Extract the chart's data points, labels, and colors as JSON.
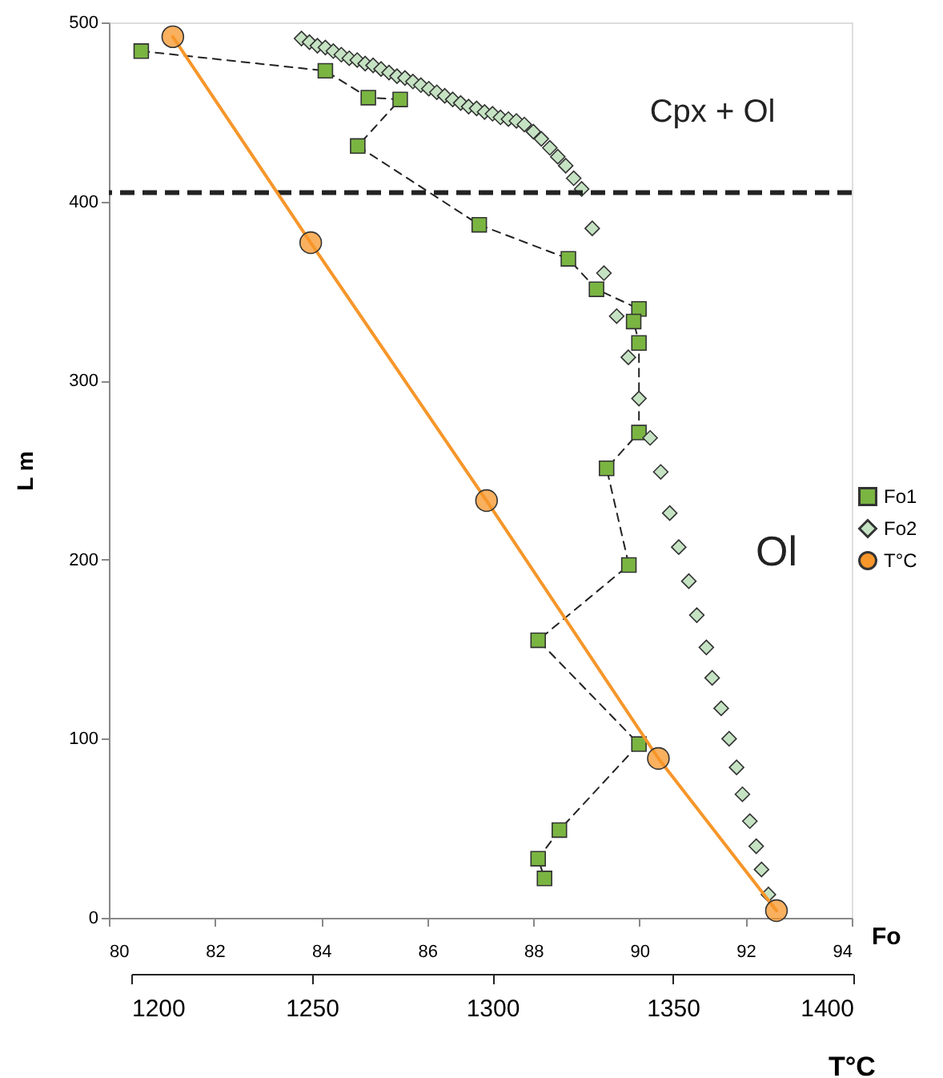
{
  "chart_data": {
    "type": "line",
    "xlabel": "Fo",
    "ylabel": "L m",
    "x2label": "T°C",
    "xlim": [
      80,
      94
    ],
    "xticks": [
      80,
      82,
      84,
      86,
      88,
      90,
      92,
      94
    ],
    "x2lim": [
      1200,
      1400
    ],
    "x2ticks": [
      1200,
      1250,
      1300,
      1350,
      1400
    ],
    "ylim": [
      0,
      500
    ],
    "yticks": [
      0,
      100,
      200,
      300,
      400,
      500
    ],
    "grid": false,
    "legend": "right",
    "ref_lines": [
      {
        "axis": "y",
        "value": 405,
        "line_style": "dashed",
        "color": "#222222"
      }
    ],
    "annotations": [
      "Cpx + Ol",
      "Ol"
    ],
    "series": [
      {
        "name": "Fo1",
        "marker": "square",
        "line_style": "dashed",
        "color": "#7ab542",
        "x": [
          80.61,
          84.08,
          84.89,
          85.49,
          84.69,
          86.98,
          88.66,
          89.19,
          89.99,
          89.89,
          89.99,
          89.99,
          89.38,
          89.8,
          88.09,
          89.99,
          88.49,
          88.09,
          88.21
        ],
        "values": [
          484,
          473,
          458,
          457,
          431,
          387,
          368,
          351,
          340,
          333,
          321,
          271,
          251,
          197,
          155,
          97,
          49,
          33,
          22
        ]
      },
      {
        "name": "Fo2",
        "type": "scatter",
        "marker": "diamond",
        "color": "#c5e3c3",
        "x": [
          83.63,
          83.78,
          83.93,
          84.08,
          84.23,
          84.38,
          84.53,
          84.68,
          84.83,
          84.98,
          85.13,
          85.28,
          85.43,
          85.58,
          85.73,
          85.88,
          86.03,
          86.18,
          86.33,
          86.48,
          86.63,
          86.78,
          86.93,
          87.08,
          87.23,
          87.38,
          87.53,
          87.68,
          87.83,
          88.0,
          88.15,
          88.31,
          88.46,
          88.61,
          88.76,
          88.91,
          89.11,
          89.33,
          89.57,
          89.79,
          89.99,
          90.2,
          90.4,
          90.57,
          90.74,
          90.93,
          91.08,
          91.26,
          91.37,
          91.54,
          91.69,
          91.83,
          91.94,
          92.08,
          92.2,
          92.3,
          92.43
        ],
        "values": [
          491,
          489,
          487,
          486,
          484,
          482,
          480,
          479,
          477,
          476,
          474,
          472,
          470,
          469,
          467,
          465,
          463,
          461,
          459,
          457,
          455,
          453,
          452,
          450,
          449,
          447,
          446,
          445,
          443,
          439,
          435,
          430,
          425,
          420,
          413,
          407,
          385,
          360,
          336,
          313,
          290,
          268,
          249,
          226,
          207,
          188,
          169,
          151,
          134,
          117,
          100,
          84,
          69,
          54,
          40,
          27,
          13
        ]
      },
      {
        "name": "T°C",
        "marker": "circle",
        "line_style": "solid",
        "axis": "x2",
        "color": "#f7962a",
        "x": [
          1211.5,
          1249.7,
          1298.4,
          1346,
          1378.7
        ],
        "values": [
          492,
          377,
          233,
          89,
          4
        ]
      }
    ]
  }
}
